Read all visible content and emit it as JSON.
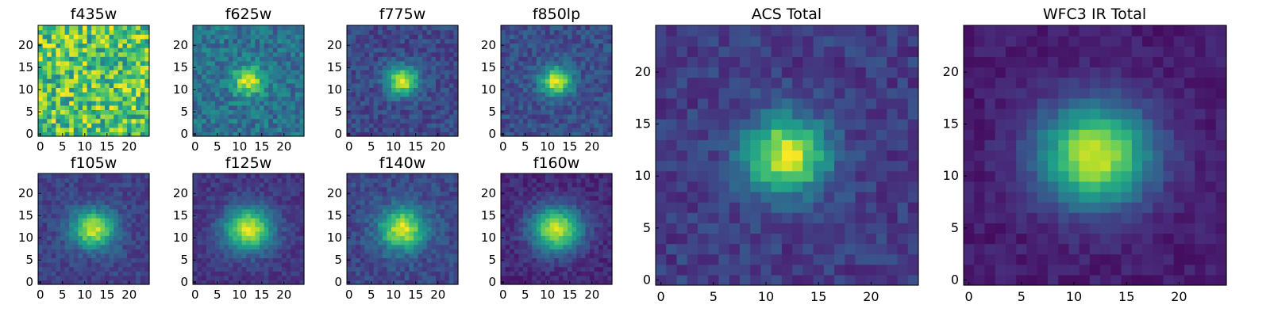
{
  "figure": {
    "colormap": "viridis",
    "colormap_stops": [
      "#440154",
      "#482878",
      "#3e4989",
      "#31688e",
      "#26828e",
      "#1f9e89",
      "#35b779",
      "#6ece58",
      "#b5de2b",
      "#fde725"
    ]
  },
  "chart_data": [
    {
      "type": "heatmap",
      "title": "f435w",
      "xlim": [
        0,
        24
      ],
      "ylim": [
        0,
        24
      ],
      "xticks": [
        "0",
        "5",
        "10",
        "15",
        "20"
      ],
      "yticks": [
        "0",
        "5",
        "10",
        "15",
        "20"
      ],
      "grid_size": 25,
      "source": {
        "center": [
          12,
          12
        ],
        "sigma_x": 3.0,
        "sigma_y": 3.0,
        "peak": 0.0,
        "background": 0.72,
        "noise": 0.28
      },
      "seed": 11
    },
    {
      "type": "heatmap",
      "title": "f625w",
      "xlim": [
        0,
        24
      ],
      "ylim": [
        0,
        24
      ],
      "xticks": [
        "0",
        "5",
        "10",
        "15",
        "20"
      ],
      "yticks": [
        "0",
        "5",
        "10",
        "15",
        "20"
      ],
      "grid_size": 25,
      "source": {
        "center": [
          12,
          12
        ],
        "sigma_x": 2.4,
        "sigma_y": 2.2,
        "peak": 0.58,
        "background": 0.38,
        "noise": 0.14
      },
      "seed": 23
    },
    {
      "type": "heatmap",
      "title": "f775w",
      "xlim": [
        0,
        24
      ],
      "ylim": [
        0,
        24
      ],
      "xticks": [
        "0",
        "5",
        "10",
        "15",
        "20"
      ],
      "yticks": [
        "0",
        "5",
        "10",
        "15",
        "20"
      ],
      "grid_size": 25,
      "source": {
        "center": [
          12,
          12
        ],
        "sigma_x": 2.5,
        "sigma_y": 2.3,
        "peak": 0.72,
        "background": 0.22,
        "noise": 0.1
      },
      "seed": 37
    },
    {
      "type": "heatmap",
      "title": "f850lp",
      "xlim": [
        0,
        24
      ],
      "ylim": [
        0,
        24
      ],
      "xticks": [
        "0",
        "5",
        "10",
        "15",
        "20"
      ],
      "yticks": [
        "0",
        "5",
        "10",
        "15",
        "20"
      ],
      "grid_size": 25,
      "source": {
        "center": [
          12,
          12
        ],
        "sigma_x": 2.5,
        "sigma_y": 2.3,
        "peak": 0.7,
        "background": 0.24,
        "noise": 0.1
      },
      "seed": 41
    },
    {
      "type": "heatmap",
      "title": "f105w",
      "xlim": [
        0,
        24
      ],
      "ylim": [
        0,
        24
      ],
      "xticks": [
        "0",
        "5",
        "10",
        "15",
        "20"
      ],
      "yticks": [
        "0",
        "5",
        "10",
        "15",
        "20"
      ],
      "grid_size": 25,
      "source": {
        "center": [
          12,
          12
        ],
        "sigma_x": 3.4,
        "sigma_y": 3.0,
        "peak": 0.72,
        "background": 0.2,
        "noise": 0.08
      },
      "seed": 53
    },
    {
      "type": "heatmap",
      "title": "f125w",
      "xlim": [
        0,
        24
      ],
      "ylim": [
        0,
        24
      ],
      "xticks": [
        "0",
        "5",
        "10",
        "15",
        "20"
      ],
      "yticks": [
        "0",
        "5",
        "10",
        "15",
        "20"
      ],
      "grid_size": 25,
      "source": {
        "center": [
          12,
          12
        ],
        "sigma_x": 3.8,
        "sigma_y": 3.4,
        "peak": 0.78,
        "background": 0.16,
        "noise": 0.07
      },
      "seed": 67
    },
    {
      "type": "heatmap",
      "title": "f140w",
      "xlim": [
        0,
        24
      ],
      "ylim": [
        0,
        24
      ],
      "xticks": [
        "0",
        "5",
        "10",
        "15",
        "20"
      ],
      "yticks": [
        "0",
        "5",
        "10",
        "15",
        "20"
      ],
      "grid_size": 25,
      "source": {
        "center": [
          12,
          12
        ],
        "sigma_x": 3.6,
        "sigma_y": 3.3,
        "peak": 0.72,
        "background": 0.22,
        "noise": 0.09
      },
      "seed": 79
    },
    {
      "type": "heatmap",
      "title": "f160w",
      "xlim": [
        0,
        24
      ],
      "ylim": [
        0,
        24
      ],
      "xticks": [
        "0",
        "5",
        "10",
        "15",
        "20"
      ],
      "yticks": [
        "0",
        "5",
        "10",
        "15",
        "20"
      ],
      "grid_size": 25,
      "source": {
        "center": [
          12,
          12
        ],
        "sigma_x": 3.9,
        "sigma_y": 3.5,
        "peak": 0.8,
        "background": 0.12,
        "noise": 0.07
      },
      "seed": 97
    },
    {
      "type": "heatmap",
      "title": "ACS Total",
      "xlim": [
        0,
        24
      ],
      "ylim": [
        0,
        24
      ],
      "xticks": [
        "0",
        "5",
        "10",
        "15",
        "20"
      ],
      "yticks": [
        "0",
        "5",
        "10",
        "15",
        "20"
      ],
      "grid_size": 25,
      "source": {
        "center": [
          12,
          12
        ],
        "sigma_x": 2.7,
        "sigma_y": 2.5,
        "peak": 0.8,
        "background": 0.18,
        "noise": 0.09
      },
      "seed": 101
    },
    {
      "type": "heatmap",
      "title": "WFC3 IR Total",
      "xlim": [
        0,
        24
      ],
      "ylim": [
        0,
        24
      ],
      "xticks": [
        "0",
        "5",
        "10",
        "15",
        "20"
      ],
      "yticks": [
        "0",
        "5",
        "10",
        "15",
        "20"
      ],
      "grid_size": 25,
      "source": {
        "center": [
          12,
          12
        ],
        "sigma_x": 3.7,
        "sigma_y": 3.4,
        "peak": 0.85,
        "background": 0.08,
        "noise": 0.05
      },
      "seed": 113
    }
  ]
}
